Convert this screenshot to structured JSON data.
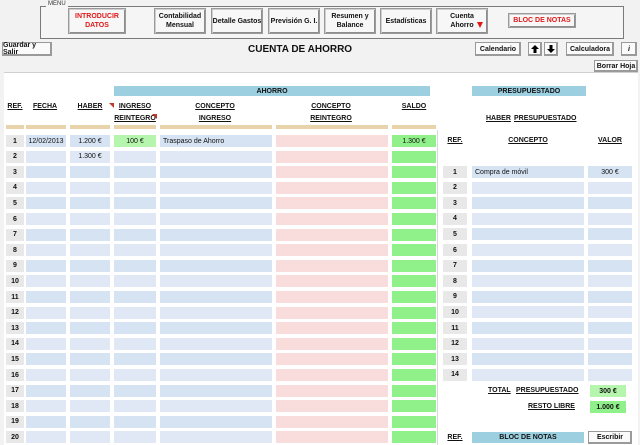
{
  "menu": {
    "caption": "MENÚ",
    "buttons": [
      {
        "id": "introducir",
        "label": "INTRODUCIR DATOS"
      },
      {
        "id": "contabilidad",
        "label": "Contabilidad Mensual"
      },
      {
        "id": "detalle",
        "label": "Detalle Gastos"
      },
      {
        "id": "prevision",
        "label": "Previsión G. I."
      },
      {
        "id": "resumen",
        "label": "Resumen y Balance"
      },
      {
        "id": "estadisticas",
        "label": "Estadísticas"
      },
      {
        "id": "cuenta",
        "label": "Cuenta Ahorro"
      },
      {
        "id": "bloc",
        "label": "BLOC DE NOTAS"
      }
    ]
  },
  "toolbar": {
    "guardar": "Guardar y Salir",
    "title": "CUENTA DE AHORRO",
    "calendario": "Calendario",
    "calculadora": "Calculadora",
    "info": "i",
    "borrar": "Borrar Hoja"
  },
  "ahorro": {
    "section_title": "AHORRO",
    "headers": {
      "ref": "REF.",
      "fecha": "FECHA",
      "haber": "HABER",
      "ingreso": "INGRESO",
      "reintegro": "REINTEGRO",
      "concepto_ingreso_1": "CONCEPTO",
      "concepto_ingreso_2": "INGRESO",
      "concepto_reintegro_1": "CONCEPTO",
      "concepto_reintegro_2": "REINTEGRO",
      "saldo": "SALDO"
    },
    "rows": [
      {
        "ref": "1",
        "fecha": "12/02/2013",
        "haber": "1.200 €",
        "ingreso": "100 €",
        "concepto_ingreso": "Traspaso de Ahorro",
        "concepto_reintegro": "",
        "saldo": "1.300 €"
      },
      {
        "ref": "2",
        "fecha": "",
        "haber": "1.300 €",
        "ingreso": "",
        "concepto_ingreso": "",
        "concepto_reintegro": "",
        "saldo": ""
      },
      {
        "ref": "3",
        "fecha": "",
        "haber": "",
        "ingreso": "",
        "concepto_ingreso": "",
        "concepto_reintegro": "",
        "saldo": ""
      },
      {
        "ref": "4",
        "fecha": "",
        "haber": "",
        "ingreso": "",
        "concepto_ingreso": "",
        "concepto_reintegro": "",
        "saldo": ""
      },
      {
        "ref": "5",
        "fecha": "",
        "haber": "",
        "ingreso": "",
        "concepto_ingreso": "",
        "concepto_reintegro": "",
        "saldo": ""
      },
      {
        "ref": "6",
        "fecha": "",
        "haber": "",
        "ingreso": "",
        "concepto_ingreso": "",
        "concepto_reintegro": "",
        "saldo": ""
      },
      {
        "ref": "7",
        "fecha": "",
        "haber": "",
        "ingreso": "",
        "concepto_ingreso": "",
        "concepto_reintegro": "",
        "saldo": ""
      },
      {
        "ref": "8",
        "fecha": "",
        "haber": "",
        "ingreso": "",
        "concepto_ingreso": "",
        "concepto_reintegro": "",
        "saldo": ""
      },
      {
        "ref": "9",
        "fecha": "",
        "haber": "",
        "ingreso": "",
        "concepto_ingreso": "",
        "concepto_reintegro": "",
        "saldo": ""
      },
      {
        "ref": "10",
        "fecha": "",
        "haber": "",
        "ingreso": "",
        "concepto_ingreso": "",
        "concepto_reintegro": "",
        "saldo": ""
      },
      {
        "ref": "11",
        "fecha": "",
        "haber": "",
        "ingreso": "",
        "concepto_ingreso": "",
        "concepto_reintegro": "",
        "saldo": ""
      },
      {
        "ref": "12",
        "fecha": "",
        "haber": "",
        "ingreso": "",
        "concepto_ingreso": "",
        "concepto_reintegro": "",
        "saldo": ""
      },
      {
        "ref": "13",
        "fecha": "",
        "haber": "",
        "ingreso": "",
        "concepto_ingreso": "",
        "concepto_reintegro": "",
        "saldo": ""
      },
      {
        "ref": "14",
        "fecha": "",
        "haber": "",
        "ingreso": "",
        "concepto_ingreso": "",
        "concepto_reintegro": "",
        "saldo": ""
      },
      {
        "ref": "15",
        "fecha": "",
        "haber": "",
        "ingreso": "",
        "concepto_ingreso": "",
        "concepto_reintegro": "",
        "saldo": ""
      },
      {
        "ref": "16",
        "fecha": "",
        "haber": "",
        "ingreso": "",
        "concepto_ingreso": "",
        "concepto_reintegro": "",
        "saldo": ""
      },
      {
        "ref": "17",
        "fecha": "",
        "haber": "",
        "ingreso": "",
        "concepto_ingreso": "",
        "concepto_reintegro": "",
        "saldo": ""
      },
      {
        "ref": "18",
        "fecha": "",
        "haber": "",
        "ingreso": "",
        "concepto_ingreso": "",
        "concepto_reintegro": "",
        "saldo": ""
      },
      {
        "ref": "19",
        "fecha": "",
        "haber": "",
        "ingreso": "",
        "concepto_ingreso": "",
        "concepto_reintegro": "",
        "saldo": ""
      },
      {
        "ref": "20",
        "fecha": "",
        "haber": "",
        "ingreso": "",
        "concepto_ingreso": "",
        "concepto_reintegro": "",
        "saldo": ""
      }
    ]
  },
  "presupuestado": {
    "section_title": "PRESUPUESTADO",
    "subtitle_1": "HABER",
    "subtitle_2": "PRESUPUESTADO",
    "headers": {
      "ref": "REF.",
      "concepto": "CONCEPTO",
      "valor": "VALOR"
    },
    "rows": [
      {
        "ref": "1",
        "concepto": "Compra de móvil",
        "valor": "300 €"
      },
      {
        "ref": "2",
        "concepto": "",
        "valor": ""
      },
      {
        "ref": "3",
        "concepto": "",
        "valor": ""
      },
      {
        "ref": "4",
        "concepto": "",
        "valor": ""
      },
      {
        "ref": "5",
        "concepto": "",
        "valor": ""
      },
      {
        "ref": "6",
        "concepto": "",
        "valor": ""
      },
      {
        "ref": "7",
        "concepto": "",
        "valor": ""
      },
      {
        "ref": "8",
        "concepto": "",
        "valor": ""
      },
      {
        "ref": "9",
        "concepto": "",
        "valor": ""
      },
      {
        "ref": "10",
        "concepto": "",
        "valor": ""
      },
      {
        "ref": "11",
        "concepto": "",
        "valor": ""
      },
      {
        "ref": "12",
        "concepto": "",
        "valor": ""
      },
      {
        "ref": "13",
        "concepto": "",
        "valor": ""
      },
      {
        "ref": "14",
        "concepto": "",
        "valor": ""
      }
    ],
    "total_label_1": "TOTAL",
    "total_label_2": "PRESUPUESTADO",
    "total_value": "300 €",
    "resto_label": "RESTO LIBRE",
    "resto_value": "1.000 €"
  },
  "notas": {
    "ref": "REF.",
    "title": "BLOC DE NOTAS",
    "escribir": "Escribir"
  },
  "colors": {
    "section_header": "#9ccfe0",
    "tan_band": "#e8d3ab",
    "row_blue": "#d6e3f3",
    "row_pink": "#f9dddd",
    "saldo_green": "#90f08a",
    "accent_red": "#e01818"
  }
}
